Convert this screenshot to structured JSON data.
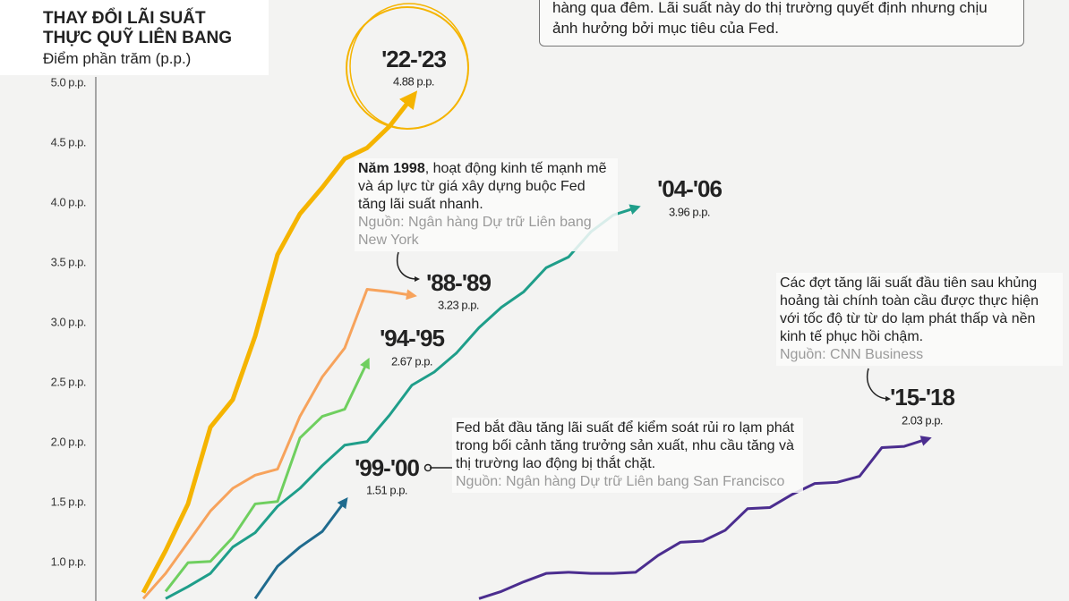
{
  "chart_data": {
    "type": "line",
    "title": [
      "THAY ĐỔI LÃI SUẤT",
      "THỰC QUỸ LIÊN BANG"
    ],
    "y_label": "Điểm phần trăm (p.p.)",
    "ylim": [
      0.68,
      5.0
    ],
    "yticks": [
      {
        "value": 1,
        "label": "1.0 p.p."
      },
      {
        "value": 1.5,
        "label": "1.5 p.p."
      },
      {
        "value": 2,
        "label": "2.0 p.p."
      },
      {
        "value": 2.5,
        "label": "2.5 p.p."
      },
      {
        "value": 3,
        "label": "3.0 p.p."
      },
      {
        "value": 3.5,
        "label": "3.5 p.p."
      },
      {
        "value": 4,
        "label": "4.0 p.p."
      },
      {
        "value": 4.5,
        "label": "4.5 p.p."
      },
      {
        "value": 5,
        "label": "5.0 p.p."
      }
    ],
    "xlim": [
      -2,
      41
    ],
    "grid": false,
    "series": [
      {
        "name": "'22-'23",
        "color": "#f5b400",
        "x": [
          0,
          1,
          2,
          3,
          4,
          5,
          6,
          7,
          8,
          9,
          10,
          11,
          12
        ],
        "values": [
          0.75,
          1.1,
          1.49,
          2.13,
          2.36,
          2.89,
          3.57,
          3.91,
          4.13,
          4.37,
          4.46,
          4.64,
          4.88
        ],
        "value_labels": [
          null,
          null,
          null,
          null,
          null,
          null,
          null,
          null,
          null,
          null,
          null,
          null,
          "4.88 p.p."
        ]
      },
      {
        "name": "'88-'89",
        "color": "#f7a35c",
        "x": [
          0,
          1,
          2,
          3,
          4,
          5,
          6,
          7,
          8,
          9,
          10,
          11,
          12
        ],
        "values": [
          0.7,
          0.91,
          1.17,
          1.43,
          1.62,
          1.73,
          1.78,
          2.22,
          2.55,
          2.79,
          3.28,
          3.26,
          3.23
        ],
        "value_labels": [
          null,
          null,
          null,
          null,
          null,
          null,
          null,
          null,
          null,
          null,
          null,
          null,
          "3.23 p.p."
        ]
      },
      {
        "name": "'94-'95",
        "color": "#6fcf5f",
        "x": [
          1,
          2,
          3,
          4,
          5,
          6,
          7,
          8,
          9,
          10
        ],
        "values": [
          0.76,
          1.0,
          1.01,
          1.21,
          1.49,
          1.51,
          2.04,
          2.22,
          2.28,
          2.67
        ],
        "value_labels": [
          null,
          null,
          null,
          null,
          null,
          null,
          null,
          null,
          null,
          "2.67 p.p."
        ]
      },
      {
        "name": "'04-'06",
        "color": "#1f9e8a",
        "x": [
          1,
          2,
          3,
          4,
          5,
          6,
          7,
          8,
          9,
          10,
          11,
          12,
          13,
          14,
          15,
          16,
          17,
          18,
          19,
          20,
          21,
          22
        ],
        "values": [
          0.7,
          0.8,
          0.91,
          1.13,
          1.25,
          1.47,
          1.62,
          1.81,
          1.98,
          2.01,
          2.23,
          2.48,
          2.59,
          2.75,
          2.96,
          3.13,
          3.26,
          3.46,
          3.55,
          3.76,
          3.9,
          3.96
        ],
        "value_labels": [
          null,
          null,
          null,
          null,
          null,
          null,
          null,
          null,
          null,
          null,
          null,
          null,
          null,
          null,
          null,
          null,
          null,
          null,
          null,
          null,
          null,
          "3.96 p.p."
        ]
      },
      {
        "name": "'99-'00",
        "color": "#1f6b8e",
        "x": [
          5,
          6,
          7,
          8,
          9
        ],
        "values": [
          0.7,
          0.97,
          1.13,
          1.26,
          1.51
        ],
        "value_labels": [
          null,
          null,
          null,
          null,
          "1.51 p.p."
        ]
      },
      {
        "name": "'15-'18",
        "color": "#4b2d8f",
        "x": [
          15,
          16,
          17,
          18,
          19,
          20,
          21,
          22,
          23,
          24,
          25,
          26,
          27,
          28,
          29,
          30,
          31,
          32,
          33,
          34,
          35
        ],
        "values": [
          0.7,
          0.76,
          0.84,
          0.91,
          0.92,
          0.91,
          0.91,
          0.92,
          1.06,
          1.17,
          1.18,
          1.27,
          1.45,
          1.46,
          1.57,
          1.66,
          1.67,
          1.72,
          1.96,
          1.97,
          2.03
        ],
        "value_labels": [
          null,
          null,
          null,
          null,
          null,
          null,
          null,
          null,
          null,
          null,
          null,
          null,
          null,
          null,
          null,
          null,
          null,
          null,
          null,
          null,
          "2.03 p.p."
        ]
      }
    ],
    "annotations": [
      {
        "text": "hàng qua đêm. Lãi suất này do thị trường quyết định nhưng chịu ảnh hưởng bởi mục tiêu của Fed."
      },
      {
        "lead": "Năm 1998",
        "text": ", hoạt động kinh tế mạnh mẽ và áp lực từ giá xây dựng buộc Fed tăng lãi suất nhanh.",
        "source": "Nguồn: Ngân hàng Dự trữ Liên bang New York"
      },
      {
        "text": "Các đợt tăng lãi suất đầu tiên sau khủng hoảng tài chính toàn cầu được thực hiện với tốc độ từ từ do lạm phát thấp và nền kinh tế phục hồi chậm.",
        "source": "Nguồn: CNN Business"
      },
      {
        "text": "Fed bắt đầu tăng lãi suất để kiểm soát rủi ro lạm phát trong bối cảnh tăng trưởng sản xuất, nhu cầu tăng và thị trường lao động bị thắt chặt.",
        "source": "Nguồn: Ngân hàng Dự trữ Liên bang San Francisco"
      }
    ]
  }
}
